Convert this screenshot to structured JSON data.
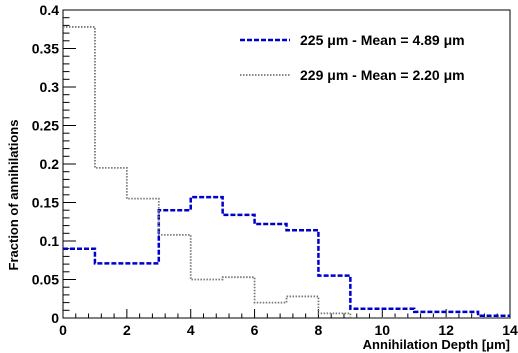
{
  "chart_data": {
    "type": "step",
    "title": "",
    "xlabel": "Annihilation Depth [μm]",
    "ylabel": "Fraction of annihilations",
    "xlim": [
      0,
      14
    ],
    "ylim": [
      0,
      0.4
    ],
    "x_ticks": [
      "0",
      "2",
      "4",
      "6",
      "8",
      "10",
      "12",
      "14"
    ],
    "y_ticks": [
      "0",
      "0.05",
      "0.1",
      "0.15",
      "0.2",
      "0.25",
      "0.3",
      "0.35",
      "0.4"
    ],
    "grid": false,
    "legend_position": "top-right",
    "bin_edges": [
      0,
      1,
      2,
      3,
      4,
      5,
      6,
      7,
      8,
      9,
      10,
      11,
      12,
      13,
      14
    ],
    "series": [
      {
        "name": "225 μm - Mean = 4.89 μm",
        "color": "#0000cc",
        "line_style": "dashed",
        "values": [
          0.09,
          0.071,
          0.071,
          0.14,
          0.157,
          0.134,
          0.122,
          0.114,
          0.055,
          0.012,
          0.012,
          0.008,
          0.008,
          0.003
        ]
      },
      {
        "name": "229 μm - Mean = 2.20 μm",
        "color": "#777777",
        "line_style": "dotted",
        "values": [
          0.378,
          0.195,
          0.155,
          0.108,
          0.05,
          0.053,
          0.02,
          0.028,
          0.006,
          0.0,
          0.0,
          0.0,
          0.0,
          0.0
        ]
      }
    ]
  }
}
